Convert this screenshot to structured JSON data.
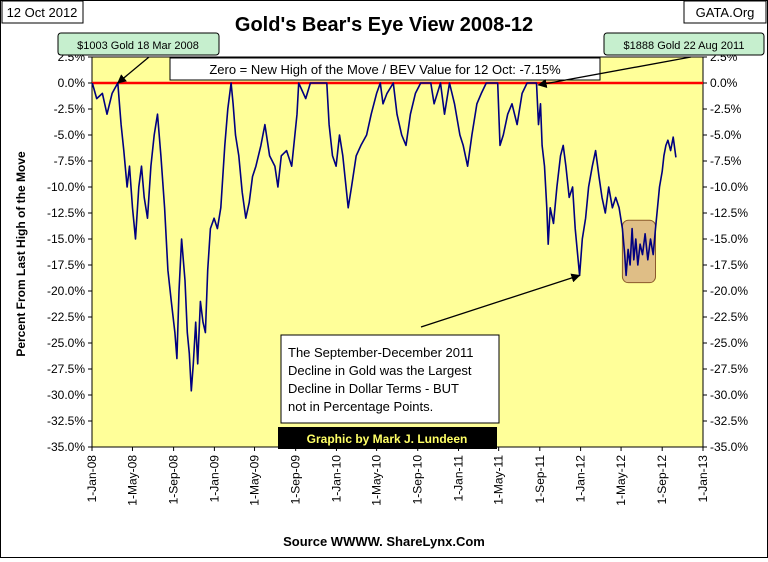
{
  "header": {
    "date_label": "12 Oct 2012",
    "title": "Gold's Bear's Eye View 2008-12",
    "source_tag": "GATA.Org"
  },
  "footer": {
    "source": "Source WWWW. ShareLynx.Com"
  },
  "chart_data": {
    "type": "line",
    "title": "Gold's Bear's Eye View 2008-12",
    "xlabel": "",
    "ylabel": "Percent From Last High of the Move",
    "xlim": [
      "2008-01-01",
      "2013-01-01"
    ],
    "ylim": [
      -35,
      2.5
    ],
    "y_ticks": [
      2.5,
      0,
      -2.5,
      -5,
      -7.5,
      -10,
      -12.5,
      -15,
      -17.5,
      -20,
      -22.5,
      -25,
      -27.5,
      -30,
      -32.5,
      -35
    ],
    "y_tick_labels": [
      "2.5%",
      "0.0%",
      "-2.5%",
      "-5.0%",
      "-7.5%",
      "-10.0%",
      "-12.5%",
      "-15.0%",
      "-17.5%",
      "-20.0%",
      "-22.5%",
      "-25.0%",
      "-27.5%",
      "-30.0%",
      "-32.5%",
      "-35.0%"
    ],
    "x_ticks": [
      "2008-01-01",
      "2008-05-01",
      "2008-09-01",
      "2009-01-01",
      "2009-05-01",
      "2009-09-01",
      "2010-01-01",
      "2010-05-01",
      "2010-09-01",
      "2011-01-01",
      "2011-05-01",
      "2011-09-01",
      "2012-01-01",
      "2012-05-01",
      "2012-09-01",
      "2013-01-01"
    ],
    "x_tick_labels": [
      "1-Jan-08",
      "1-May-08",
      "1-Sep-08",
      "1-Jan-09",
      "1-May-09",
      "1-Sep-09",
      "1-Jan-10",
      "1-May-10",
      "1-Sep-10",
      "1-Jan-11",
      "1-May-11",
      "1-Sep-11",
      "1-Jan-12",
      "1-May-12",
      "1-Sep-12",
      "1-Jan-13"
    ],
    "grid": false,
    "colors": {
      "plot_background": "#ffff99",
      "series_line": "#000080",
      "zero_line": "#ff0000",
      "callout_fill": "#c6efce",
      "highlight_fill": "#d9b382",
      "highlight_stroke": "#8b5a2b",
      "credit_fill": "#000000",
      "credit_text": "#ffff66"
    },
    "series": [
      {
        "values": [
          [
            "2008-01-02",
            0
          ],
          [
            "2008-01-15",
            -1.5
          ],
          [
            "2008-02-01",
            -1
          ],
          [
            "2008-02-15",
            -3
          ],
          [
            "2008-03-01",
            -1
          ],
          [
            "2008-03-18",
            0
          ],
          [
            "2008-03-28",
            -4
          ],
          [
            "2008-04-05",
            -6.5
          ],
          [
            "2008-04-15",
            -10
          ],
          [
            "2008-04-22",
            -8
          ],
          [
            "2008-05-01",
            -12
          ],
          [
            "2008-05-10",
            -15
          ],
          [
            "2008-05-20",
            -10
          ],
          [
            "2008-05-28",
            -8
          ],
          [
            "2008-06-05",
            -11
          ],
          [
            "2008-06-15",
            -13
          ],
          [
            "2008-06-25",
            -8
          ],
          [
            "2008-07-05",
            -5
          ],
          [
            "2008-07-15",
            -3
          ],
          [
            "2008-07-25",
            -7
          ],
          [
            "2008-08-05",
            -12
          ],
          [
            "2008-08-15",
            -18
          ],
          [
            "2008-08-25",
            -21
          ],
          [
            "2008-09-05",
            -24
          ],
          [
            "2008-09-11",
            -26.5
          ],
          [
            "2008-09-17",
            -20
          ],
          [
            "2008-09-25",
            -15
          ],
          [
            "2008-10-05",
            -19
          ],
          [
            "2008-10-12",
            -24
          ],
          [
            "2008-10-18",
            -26
          ],
          [
            "2008-10-24",
            -29.6
          ],
          [
            "2008-10-30",
            -27
          ],
          [
            "2008-11-06",
            -23
          ],
          [
            "2008-11-12",
            -27
          ],
          [
            "2008-11-20",
            -21
          ],
          [
            "2008-11-28",
            -23
          ],
          [
            "2008-12-05",
            -24
          ],
          [
            "2008-12-12",
            -18
          ],
          [
            "2008-12-20",
            -14
          ],
          [
            "2008-12-31",
            -13
          ],
          [
            "2009-01-10",
            -14
          ],
          [
            "2009-01-20",
            -12
          ],
          [
            "2009-02-01",
            -6
          ],
          [
            "2009-02-10",
            -2.5
          ],
          [
            "2009-02-20",
            0
          ],
          [
            "2009-02-26",
            -2
          ],
          [
            "2009-03-05",
            -5
          ],
          [
            "2009-03-15",
            -7
          ],
          [
            "2009-03-25",
            -10.5
          ],
          [
            "2009-04-05",
            -13
          ],
          [
            "2009-04-15",
            -11.5
          ],
          [
            "2009-04-25",
            -9
          ],
          [
            "2009-05-05",
            -8
          ],
          [
            "2009-05-20",
            -6
          ],
          [
            "2009-06-01",
            -4
          ],
          [
            "2009-06-15",
            -7
          ],
          [
            "2009-07-01",
            -8
          ],
          [
            "2009-07-10",
            -10
          ],
          [
            "2009-07-20",
            -7
          ],
          [
            "2009-08-05",
            -6.5
          ],
          [
            "2009-08-20",
            -8
          ],
          [
            "2009-09-05",
            -3
          ],
          [
            "2009-09-10",
            0
          ],
          [
            "2009-10-01",
            -1.5
          ],
          [
            "2009-10-15",
            0
          ],
          [
            "2009-11-01",
            0
          ],
          [
            "2009-11-15",
            0
          ],
          [
            "2009-12-03",
            0
          ],
          [
            "2009-12-10",
            -4
          ],
          [
            "2009-12-20",
            -7
          ],
          [
            "2009-12-31",
            -8
          ],
          [
            "2010-01-10",
            -5
          ],
          [
            "2010-01-20",
            -7
          ],
          [
            "2010-01-28",
            -9.5
          ],
          [
            "2010-02-05",
            -12
          ],
          [
            "2010-02-15",
            -10
          ],
          [
            "2010-03-01",
            -7
          ],
          [
            "2010-03-15",
            -6
          ],
          [
            "2010-04-01",
            -5
          ],
          [
            "2010-04-15",
            -3
          ],
          [
            "2010-05-01",
            -1
          ],
          [
            "2010-05-12",
            0
          ],
          [
            "2010-05-20",
            -2
          ],
          [
            "2010-06-01",
            -1
          ],
          [
            "2010-06-20",
            0
          ],
          [
            "2010-07-01",
            -3
          ],
          [
            "2010-07-15",
            -5
          ],
          [
            "2010-07-28",
            -6
          ],
          [
            "2010-08-10",
            -3
          ],
          [
            "2010-08-25",
            -1
          ],
          [
            "2010-09-10",
            0
          ],
          [
            "2010-09-25",
            0
          ],
          [
            "2010-10-10",
            0
          ],
          [
            "2010-10-20",
            -2
          ],
          [
            "2010-11-08",
            0
          ],
          [
            "2010-11-20",
            -3
          ],
          [
            "2010-12-05",
            0
          ],
          [
            "2010-12-20",
            -2
          ],
          [
            "2011-01-05",
            -5
          ],
          [
            "2011-01-15",
            -6
          ],
          [
            "2011-01-28",
            -8
          ],
          [
            "2011-02-10",
            -5
          ],
          [
            "2011-02-25",
            -2
          ],
          [
            "2011-03-10",
            -1
          ],
          [
            "2011-03-25",
            0
          ],
          [
            "2011-04-10",
            0
          ],
          [
            "2011-04-28",
            0
          ],
          [
            "2011-05-05",
            -6
          ],
          [
            "2011-05-15",
            -5
          ],
          [
            "2011-05-28",
            -3
          ],
          [
            "2011-06-10",
            -2
          ],
          [
            "2011-06-25",
            -4
          ],
          [
            "2011-07-10",
            -1
          ],
          [
            "2011-07-25",
            0
          ],
          [
            "2011-08-10",
            0
          ],
          [
            "2011-08-22",
            0
          ],
          [
            "2011-08-28",
            -4
          ],
          [
            "2011-09-03",
            -2
          ],
          [
            "2011-09-08",
            -6
          ],
          [
            "2011-09-15",
            -8
          ],
          [
            "2011-09-22",
            -12
          ],
          [
            "2011-09-26",
            -15.5
          ],
          [
            "2011-10-02",
            -12
          ],
          [
            "2011-10-12",
            -13.5
          ],
          [
            "2011-10-22",
            -10
          ],
          [
            "2011-11-02",
            -7
          ],
          [
            "2011-11-10",
            -6
          ],
          [
            "2011-11-18",
            -8
          ],
          [
            "2011-11-28",
            -11
          ],
          [
            "2011-12-08",
            -10
          ],
          [
            "2011-12-16",
            -14
          ],
          [
            "2011-12-29",
            -18.5
          ],
          [
            "2012-01-06",
            -15
          ],
          [
            "2012-01-16",
            -13
          ],
          [
            "2012-01-25",
            -10
          ],
          [
            "2012-02-05",
            -8
          ],
          [
            "2012-02-15",
            -6.5
          ],
          [
            "2012-02-25",
            -9
          ],
          [
            "2012-03-05",
            -11
          ],
          [
            "2012-03-15",
            -12.5
          ],
          [
            "2012-03-25",
            -10
          ],
          [
            "2012-04-05",
            -12
          ],
          [
            "2012-04-15",
            -11
          ],
          [
            "2012-04-25",
            -12
          ],
          [
            "2012-05-05",
            -14
          ],
          [
            "2012-05-12",
            -16.5
          ],
          [
            "2012-05-16",
            -18.5
          ],
          [
            "2012-05-22",
            -16
          ],
          [
            "2012-05-28",
            -17.5
          ],
          [
            "2012-06-03",
            -14
          ],
          [
            "2012-06-08",
            -17
          ],
          [
            "2012-06-14",
            -15
          ],
          [
            "2012-06-20",
            -17.5
          ],
          [
            "2012-06-27",
            -15.5
          ],
          [
            "2012-07-04",
            -16.5
          ],
          [
            "2012-07-12",
            -14.5
          ],
          [
            "2012-07-20",
            -17
          ],
          [
            "2012-07-28",
            -15
          ],
          [
            "2012-08-05",
            -16.5
          ],
          [
            "2012-08-12",
            -14
          ],
          [
            "2012-08-18",
            -12
          ],
          [
            "2012-08-24",
            -10
          ],
          [
            "2012-09-01",
            -8.5
          ],
          [
            "2012-09-06",
            -7
          ],
          [
            "2012-09-12",
            -6
          ],
          [
            "2012-09-18",
            -5.5
          ],
          [
            "2012-09-26",
            -6.5
          ],
          [
            "2012-10-04",
            -5.2
          ],
          [
            "2012-10-12",
            -7.15
          ]
        ]
      }
    ],
    "zero_label": "Zero = New High of the Move / BEV Value for 12 Oct: -7.15%",
    "annotations": {
      "callout_2008": {
        "text": "$1003  Gold 18 Mar 2008",
        "point": [
          "2008-03-18",
          0
        ]
      },
      "callout_2011": {
        "text": "$1888  Gold 22 Aug 2011",
        "point": [
          "2011-08-22",
          0
        ]
      },
      "decline_note": {
        "lines": [
          "The September-December 2011",
          "Decline in Gold was the Largest",
          "Decline in Dollar Terms - BUT",
          "not in Percentage Points."
        ],
        "arrow_to": [
          "2011-12-29",
          -18.5
        ]
      },
      "credit": "Graphic by Mark J. Lundeen",
      "highlight": {
        "from": "2012-05-05",
        "to": "2012-08-12",
        "top": -13.2,
        "bottom": -19.2
      }
    }
  }
}
